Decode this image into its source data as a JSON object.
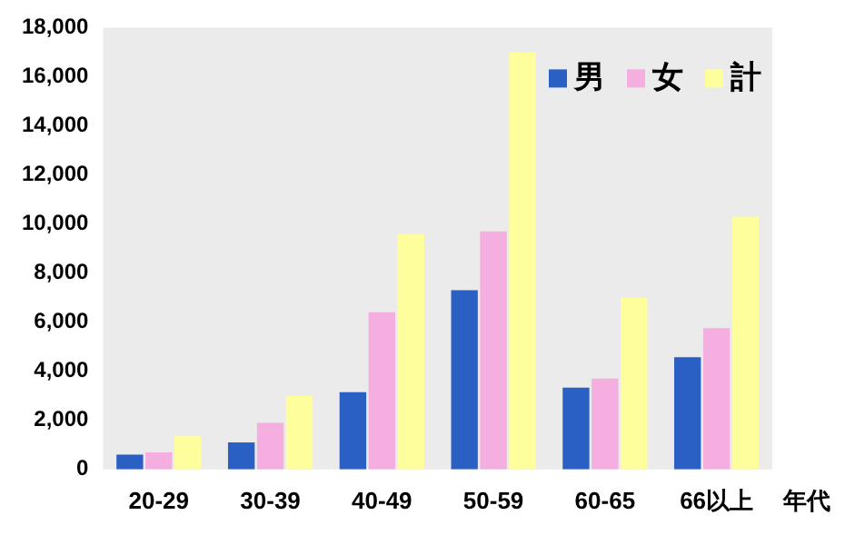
{
  "chart_data": {
    "type": "bar",
    "xlabel": "年代",
    "categories": [
      "20-29",
      "30-39",
      "40-49",
      "50-59",
      "60-65",
      "66以上"
    ],
    "series": [
      {
        "name": "男",
        "color": "#2a5fc4",
        "values": [
          600,
          1100,
          3150,
          7300,
          3330,
          4570
        ]
      },
      {
        "name": "女",
        "color": "#f5aee0",
        "values": [
          700,
          1900,
          6400,
          9700,
          3700,
          5760
        ]
      },
      {
        "name": "計",
        "color": "#fefe9c",
        "values": [
          1350,
          3000,
          9600,
          17000,
          7000,
          10300
        ]
      }
    ],
    "ylim": [
      0,
      18000
    ],
    "yticks": [
      0,
      {
        "value": 2000,
        "label": "2,000"
      },
      {
        "value": 4000,
        "label": "4,000"
      },
      {
        "value": 6000,
        "label": "6,000"
      },
      {
        "value": 8000,
        "label": "8,000"
      },
      {
        "value": 10000,
        "label": "10,000"
      },
      {
        "value": 12000,
        "label": "12,000"
      },
      {
        "value": 14000,
        "label": "14,000"
      },
      {
        "value": 16000,
        "label": "16,000"
      },
      {
        "value": 18000,
        "label": "18,000"
      }
    ],
    "grid": false,
    "legend": "top right"
  }
}
